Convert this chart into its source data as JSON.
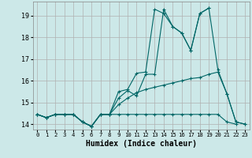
{
  "xlabel": "Humidex (Indice chaleur)",
  "background_color": "#cce8e8",
  "grid_color": "#b0b0b0",
  "line_color": "#006666",
  "xlim": [
    -0.5,
    23.5
  ],
  "ylim": [
    13.75,
    19.65
  ],
  "yticks": [
    14,
    15,
    16,
    17,
    18,
    19
  ],
  "xticks": [
    0,
    1,
    2,
    3,
    4,
    5,
    6,
    7,
    8,
    9,
    10,
    11,
    12,
    13,
    14,
    15,
    16,
    17,
    18,
    19,
    20,
    21,
    22,
    23
  ],
  "series": [
    [
      14.45,
      14.3,
      14.45,
      14.45,
      14.45,
      14.1,
      13.9,
      14.45,
      14.45,
      14.45,
      14.45,
      14.45,
      14.45,
      14.45,
      14.45,
      14.45,
      14.45,
      14.45,
      14.45,
      14.45,
      14.45,
      14.1,
      14.0,
      null
    ],
    [
      14.45,
      14.3,
      14.45,
      14.45,
      14.45,
      14.1,
      13.9,
      14.45,
      14.45,
      14.9,
      15.2,
      15.45,
      15.6,
      15.7,
      15.8,
      15.9,
      16.0,
      16.1,
      16.15,
      16.3,
      16.4,
      15.4,
      14.1,
      14.0
    ],
    [
      14.45,
      14.3,
      14.45,
      14.45,
      14.45,
      14.1,
      13.9,
      14.45,
      14.45,
      15.2,
      15.55,
      15.3,
      16.3,
      16.3,
      19.3,
      18.5,
      18.2,
      17.4,
      19.1,
      19.35,
      16.5,
      15.4,
      14.1,
      14.0
    ],
    [
      14.45,
      14.3,
      14.45,
      14.45,
      14.45,
      14.1,
      13.9,
      14.45,
      14.45,
      15.5,
      15.6,
      16.35,
      16.4,
      19.3,
      19.1,
      18.5,
      18.2,
      17.4,
      19.1,
      19.35,
      null,
      null,
      null,
      null
    ]
  ]
}
